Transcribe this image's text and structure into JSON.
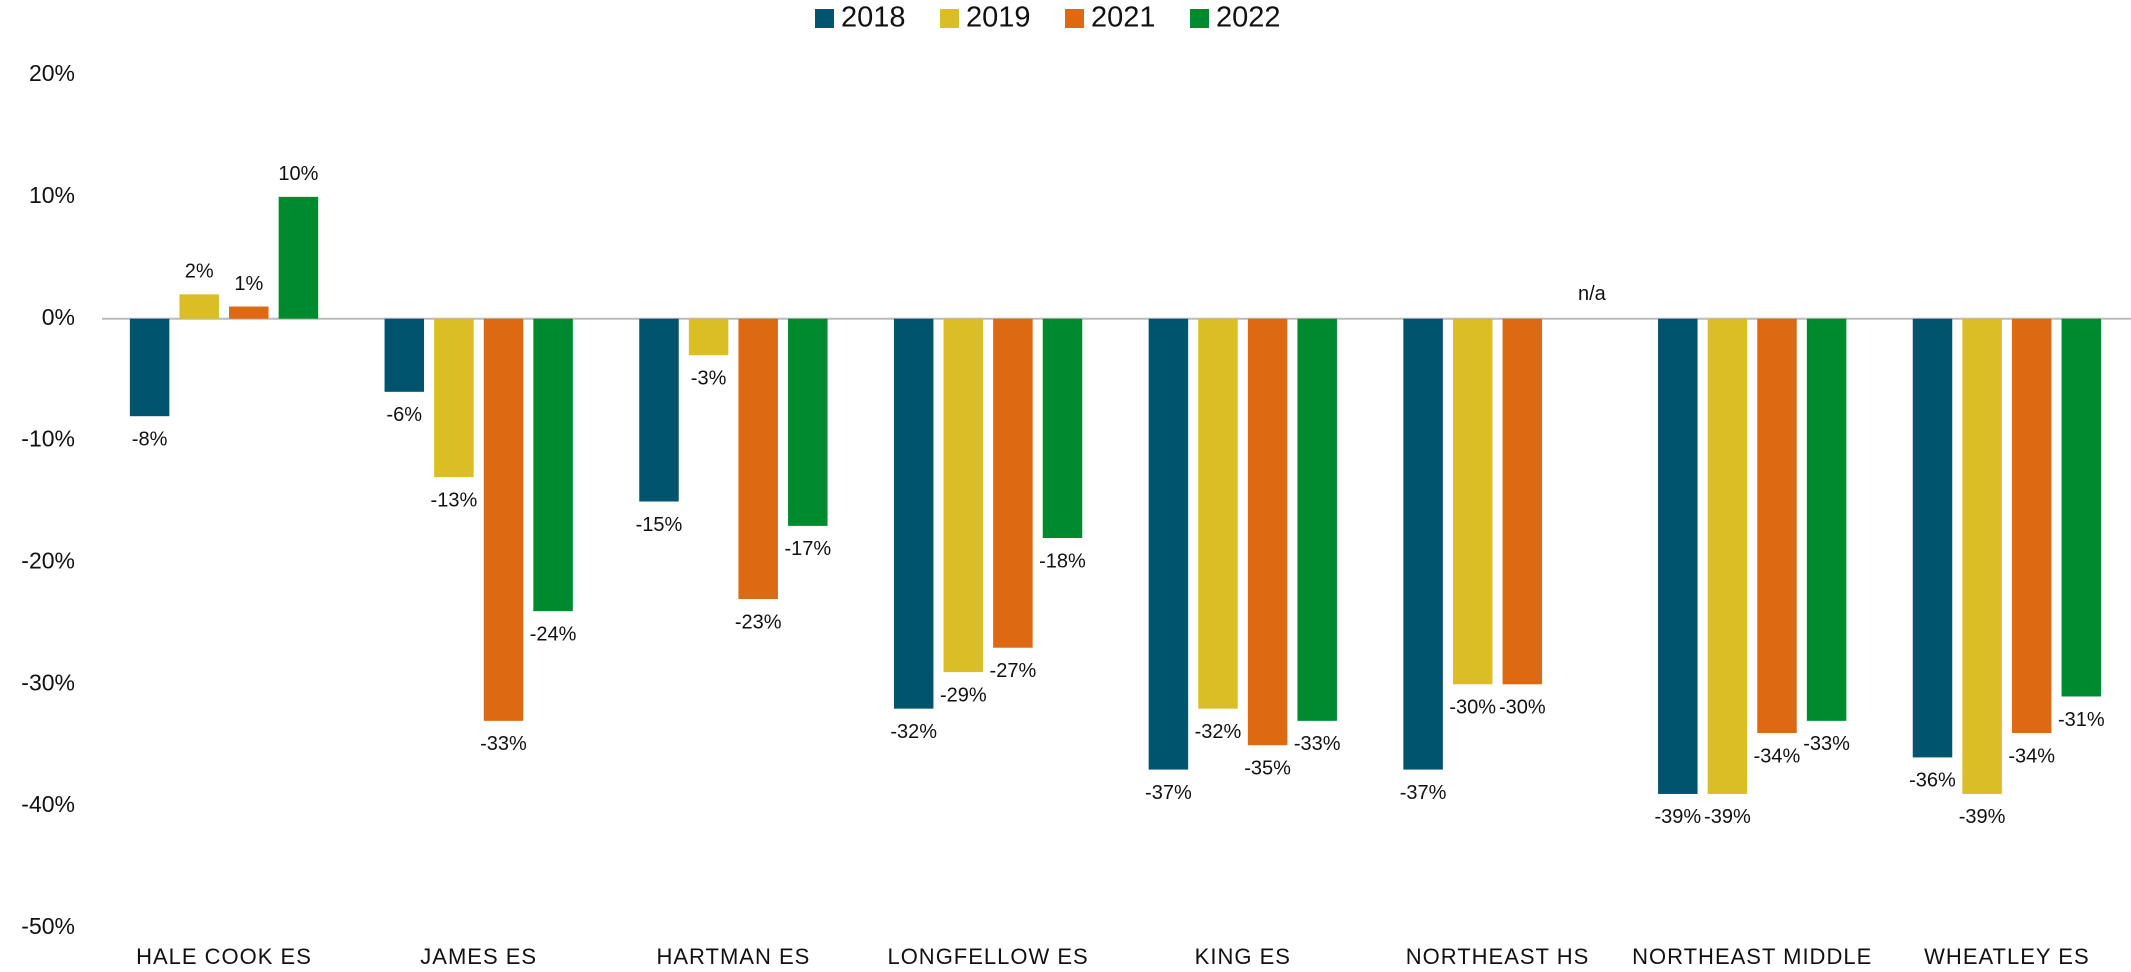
{
  "chart_data": {
    "type": "bar",
    "categories": [
      "HALE COOK ES",
      "JAMES ES",
      "HARTMAN ES",
      "LONGFELLOW ES",
      "KING ES",
      "NORTHEAST HS",
      "NORTHEAST MIDDLE",
      "WHEATLEY ES"
    ],
    "series": [
      {
        "name": "2018",
        "color": "#00546e",
        "values": [
          -8,
          -6,
          -15,
          -32,
          -37,
          -37,
          -39,
          -36
        ],
        "value_labels": [
          "-8%",
          "-6%",
          "-15%",
          "-32%",
          "-37%",
          "-37%",
          "-39%",
          "-36%"
        ]
      },
      {
        "name": "2019",
        "color": "#dbbd25",
        "values": [
          2,
          -13,
          -3,
          -29,
          -32,
          -30,
          -39,
          -39
        ],
        "value_labels": [
          "2%",
          "-13%",
          "-3%",
          "-29%",
          "-32%",
          "-30%",
          "-39%",
          "-39%"
        ]
      },
      {
        "name": "2021",
        "color": "#dd6a12",
        "values": [
          1,
          -33,
          -23,
          -27,
          -35,
          -30,
          -34,
          -34
        ],
        "value_labels": [
          "1%",
          "-33%",
          "-23%",
          "-27%",
          "-35%",
          "-30%",
          "-34%",
          "-34%"
        ]
      },
      {
        "name": "2022",
        "color": "#008a2e",
        "values": [
          10,
          -24,
          -17,
          -18,
          -33,
          null,
          -33,
          -31
        ],
        "value_labels": [
          "10%",
          "-24%",
          "-17%",
          "-18%",
          "-33%",
          "n/a",
          "-33%",
          "-31%"
        ]
      }
    ],
    "ylim": [
      -50,
      20
    ],
    "yticks": [
      {
        "value": -50,
        "label": "-50%"
      },
      {
        "value": -40,
        "label": "-40%"
      },
      {
        "value": -30,
        "label": "-30%"
      },
      {
        "value": -20,
        "label": "-20%"
      },
      {
        "value": -10,
        "label": "-10%"
      },
      {
        "value": 0,
        "label": "0%"
      },
      {
        "value": 10,
        "label": "10%"
      },
      {
        "value": 20,
        "label": "20%"
      }
    ],
    "legend": "top",
    "grid": false
  }
}
